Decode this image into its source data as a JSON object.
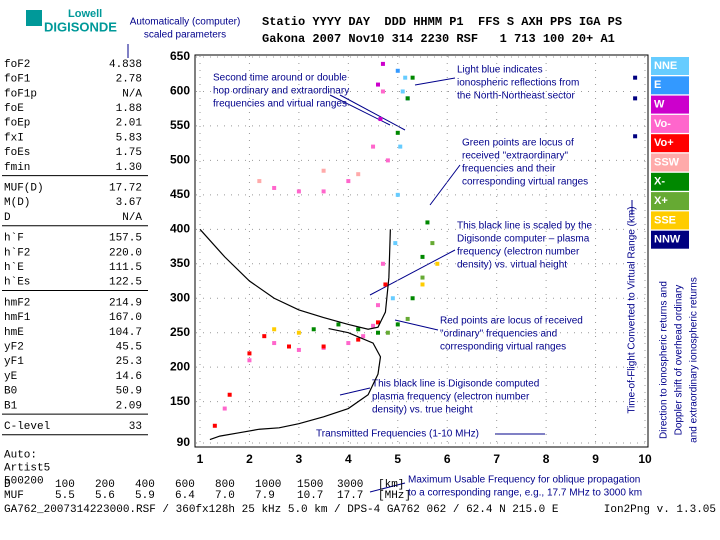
{
  "header": {
    "logo_top": "Lowell",
    "logo_bottom": "DIGISONDE",
    "caption_lines": [
      "Automatically (computer)",
      "scaled parameters"
    ],
    "line1": "Statio YYYY DAY  DDD HHMM P1  FFS S AXH PPS IGA PS",
    "line2": "Gakona 2007 Nov10 314 2230 RSF   1 713 100 20+ A1"
  },
  "parameters": [
    [
      [
        "foF2",
        "4.838"
      ],
      [
        "foF1",
        "2.78"
      ],
      [
        "foF1p",
        "N/A"
      ],
      [
        "foE",
        "1.88"
      ],
      [
        "foEp",
        "2.01"
      ],
      [
        "fxI",
        "5.83"
      ],
      [
        "foEs",
        "1.75"
      ],
      [
        "fmin",
        "1.30"
      ]
    ],
    [
      [
        "MUF(D)",
        "17.72"
      ],
      [
        "M(D)",
        "3.67"
      ],
      [
        "D",
        "N/A"
      ]
    ],
    [
      [
        "h`F",
        "157.5"
      ],
      [
        "h`F2",
        "220.0"
      ],
      [
        "h`E",
        "111.5"
      ],
      [
        "h`Es",
        "122.5"
      ]
    ],
    [
      [
        "hmF2",
        "214.9"
      ],
      [
        "hmF1",
        "167.0"
      ],
      [
        "hmE",
        "104.7"
      ],
      [
        "yF2",
        "45.5"
      ],
      [
        "yF1",
        "25.3"
      ],
      [
        "yE",
        "14.6"
      ],
      [
        "B0",
        "50.9"
      ],
      [
        "B1",
        "2.09"
      ]
    ],
    [
      [
        "C-level",
        "33"
      ]
    ]
  ],
  "auto": [
    "Auto:",
    "Artist5",
    "500200"
  ],
  "muf_table": [
    [
      "D",
      "100",
      "200",
      "400",
      "600",
      "800",
      "1000",
      "1500",
      "3000",
      "[km]"
    ],
    [
      "MUF",
      "5.5",
      "5.6",
      "5.9",
      "6.4",
      "7.0",
      "7.9",
      "10.7",
      "17.7",
      "[MHz]"
    ]
  ],
  "footer": {
    "left": "GA762_2007314223000.RSF / 360fx128h 25 kHz 5.0 km / DPS-4 GA762 062 / 62.4 N 215.0 E",
    "right": "Ion2Png v. 1.3.05"
  },
  "annotations": [
    [
      "Second time around or double",
      "hop ordinary and extraordinary",
      "frequencies and virtual ranges"
    ],
    [
      "Light blue indicates",
      "ionospheric reflections from",
      "the  North-Northeast sector"
    ],
    [
      "Green points are locus of",
      "received \"extraordinary\"",
      "frequencies and their",
      "corresponding virtual ranges"
    ],
    [
      "This black line is scaled by the",
      "Digisonde computer – plasma",
      "frequency (electron number",
      "density) vs. virtual height"
    ],
    [
      "Red points are locus of received",
      "\"ordinary\" frequencies and",
      "corresponding virtual ranges"
    ],
    [
      "This black line is Digisonde computed",
      "plasma frequency (electron number",
      "density) vs. true height"
    ],
    [
      "Transmitted Frequencies (1-10 MHz)"
    ],
    [
      "Maximum Usable Frequency for oblique propagation",
      "to a corresponding range, e.g., 17.7 MHz to 3000 km"
    ]
  ],
  "side_labels": [
    "Time-of-Flight Converted to Virtual Range (km)",
    "Direction to ionospheric returns and",
    "Doppler shift of overhead ordinary",
    "and extraordinary ionospheric returns"
  ],
  "chart_data": {
    "type": "scatter",
    "xlim": [
      1,
      10
    ],
    "ylim": [
      90,
      650
    ],
    "xticks": [
      1,
      2,
      3,
      4,
      5,
      6,
      7,
      8,
      9,
      10
    ],
    "yticks": [
      90,
      150,
      200,
      250,
      300,
      350,
      400,
      450,
      500,
      550,
      600,
      650
    ],
    "grid": true,
    "series": [
      {
        "name": "NNE",
        "color": "#66ccff",
        "x": [
          4.9,
          4.95,
          5.0,
          5.05,
          5.1,
          5.15
        ],
        "values": [
          300,
          380,
          450,
          520,
          600,
          620
        ]
      },
      {
        "name": "E",
        "color": "#3399ff",
        "x": [
          5.0,
          5.2
        ],
        "values": [
          630,
          590
        ]
      },
      {
        "name": "W",
        "color": "#cc00cc",
        "x": [
          4.6,
          4.7,
          4.65
        ],
        "values": [
          610,
          640,
          560
        ]
      },
      {
        "name": "Vo-",
        "color": "#ff66cc",
        "x": [
          1.5,
          2.0,
          2.5,
          3.0,
          3.5,
          4.0,
          4.3,
          4.5,
          4.6,
          4.7,
          4.8,
          2.5,
          3.0,
          3.5,
          4.0,
          4.5,
          4.7
        ],
        "values": [
          140,
          210,
          235,
          225,
          228,
          235,
          245,
          260,
          290,
          350,
          500,
          460,
          455,
          455,
          470,
          520,
          600
        ]
      },
      {
        "name": "Vo+",
        "color": "#ff0000",
        "x": [
          1.3,
          1.6,
          2.0,
          2.3,
          2.8,
          3.5,
          4.2,
          4.6,
          4.75
        ],
        "values": [
          115,
          160,
          220,
          245,
          230,
          230,
          240,
          265,
          320
        ]
      },
      {
        "name": "SSW",
        "color": "#ffaaaa",
        "x": [
          2.2,
          3.5,
          4.2
        ],
        "values": [
          470,
          485,
          480
        ]
      },
      {
        "name": "X-",
        "color": "#008800",
        "x": [
          3.3,
          3.8,
          4.2,
          4.6,
          5.0,
          5.3,
          5.5,
          5.6,
          5.0,
          5.2,
          5.3
        ],
        "values": [
          255,
          262,
          255,
          250,
          262,
          300,
          360,
          410,
          540,
          590,
          620
        ]
      },
      {
        "name": "X+",
        "color": "#66aa33",
        "x": [
          4.8,
          5.2,
          5.5,
          5.7
        ],
        "values": [
          250,
          270,
          330,
          380
        ]
      },
      {
        "name": "SSE",
        "color": "#ffcc00",
        "x": [
          2.5,
          3.0,
          5.5,
          5.8
        ],
        "values": [
          255,
          250,
          320,
          350
        ]
      },
      {
        "name": "NNW",
        "color": "#000080",
        "x": [
          9.8,
          9.8,
          9.8
        ],
        "values": [
          620,
          590,
          535
        ]
      }
    ],
    "lines": [
      {
        "color": "#000000",
        "x": [
          1.0,
          1.5,
          2.0,
          2.5,
          3.0,
          3.5,
          4.0,
          4.4,
          4.6,
          4.75,
          4.82,
          4.85
        ],
        "values": [
          400,
          360,
          325,
          300,
          283,
          272,
          262,
          255,
          258,
          280,
          330,
          400
        ]
      },
      {
        "color": "#000000",
        "x": [
          1.2,
          1.4,
          1.8,
          2.2,
          2.6,
          3.0,
          3.5,
          4.0,
          4.4,
          4.6,
          4.65,
          4.5,
          4.0,
          3.6
        ],
        "values": [
          95,
          100,
          105,
          110,
          112,
          118,
          128,
          140,
          160,
          190,
          215,
          235,
          250,
          256
        ]
      }
    ]
  }
}
